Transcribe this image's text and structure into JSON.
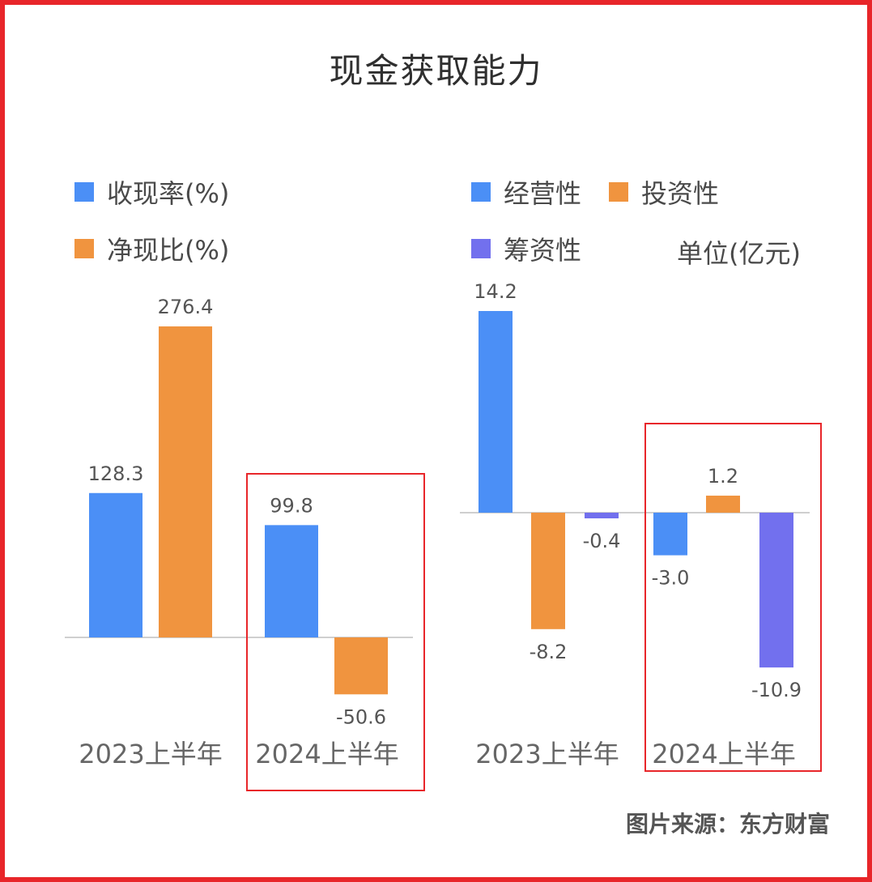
{
  "title": "现金获取能力",
  "colors": {
    "blue": "#4b8ff6",
    "orange": "#f0943f",
    "purple": "#7270ee",
    "highlight": "#e8262a",
    "axis": "#cfcfcf"
  },
  "left_legend": [
    {
      "label": "收现率(%)",
      "color": "#4b8ff6"
    },
    {
      "label": "净现比(%)",
      "color": "#f0943f"
    }
  ],
  "right_legend": [
    {
      "label": "经营性",
      "color": "#4b8ff6"
    },
    {
      "label": "投资性",
      "color": "#f0943f"
    },
    {
      "label": "筹资性",
      "color": "#7270ee"
    }
  ],
  "unit_label": "单位(亿元)",
  "source": "图片来源：东方财富",
  "chart_data": [
    {
      "type": "bar",
      "categories": [
        "2023上半年",
        "2024上半年"
      ],
      "series": [
        {
          "name": "收现率(%)",
          "values": [
            128.3,
            99.8
          ],
          "labels": [
            "128.3",
            "99.8"
          ],
          "color": "#4b8ff6"
        },
        {
          "name": "净现比(%)",
          "values": [
            276.4,
            -50.6
          ],
          "labels": [
            "276.4",
            "-50.6"
          ],
          "color": "#f0943f"
        }
      ],
      "highlighted_category": "2024上半年"
    },
    {
      "type": "bar",
      "categories": [
        "2023上半年",
        "2024上半年"
      ],
      "series": [
        {
          "name": "经营性",
          "values": [
            14.2,
            -3.0
          ],
          "labels": [
            "14.2",
            "-3.0"
          ],
          "color": "#4b8ff6"
        },
        {
          "name": "投资性",
          "values": [
            -8.2,
            1.2
          ],
          "labels": [
            "-8.2",
            "1.2"
          ],
          "color": "#f0943f"
        },
        {
          "name": "筹资性",
          "values": [
            -0.4,
            -10.9
          ],
          "labels": [
            "-0.4",
            "-10.9"
          ],
          "color": "#7270ee"
        }
      ],
      "unit": "单位(亿元)",
      "highlighted_category": "2024上半年"
    }
  ]
}
